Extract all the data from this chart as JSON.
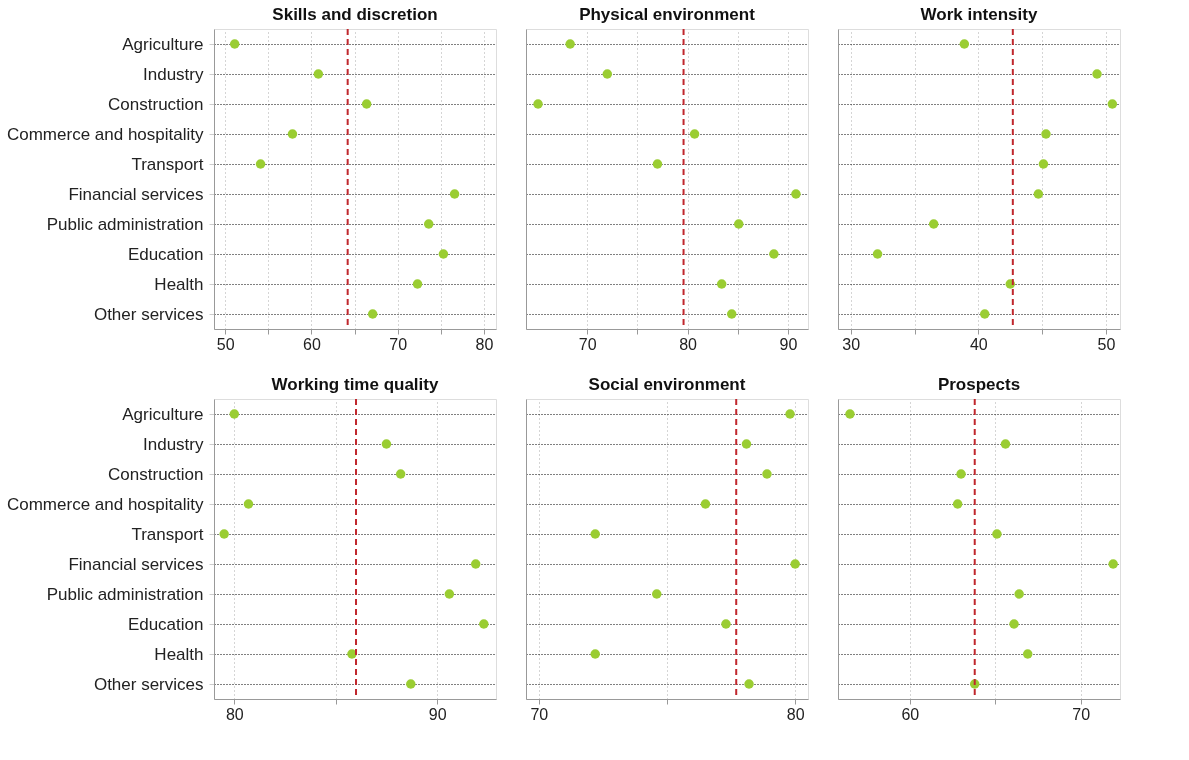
{
  "chart_data": [
    {
      "type": "scatter",
      "orientation": "horizontal",
      "title": "Skills and discretion",
      "categories": [
        "Agriculture",
        "Industry",
        "Construction",
        "Commerce and hospitality",
        "Transport",
        "Financial services",
        "Public administration",
        "Education",
        "Health",
        "Other services"
      ],
      "values": [
        51.1,
        60.8,
        66.4,
        57.8,
        54.1,
        76.6,
        73.6,
        75.3,
        72.3,
        67.1
      ],
      "color": "#9acd32",
      "marker": "circle",
      "xlim": [
        48.7,
        81.4
      ],
      "xticks": [
        50,
        {
          "value": 55,
          "label": null
        },
        60,
        {
          "value": 65,
          "label": null
        },
        70,
        {
          "value": 75,
          "label": null
        },
        80
      ],
      "ref_lines": [
        {
          "axis": "x",
          "value": 64.2,
          "color": "#c0272d",
          "line_style": "dashed"
        }
      ],
      "grid": true
    },
    {
      "type": "scatter",
      "orientation": "horizontal",
      "title": "Physical environment",
      "values": [
        68.3,
        72.0,
        65.1,
        80.7,
        77.0,
        90.8,
        85.1,
        88.6,
        83.4,
        84.4
      ],
      "color": "#9acd32",
      "marker": "circle",
      "xlim": [
        63.9,
        92.0
      ],
      "xticks": [
        70,
        {
          "value": 75,
          "label": null
        },
        80,
        {
          "value": 85,
          "label": null
        },
        90
      ],
      "ref_lines": [
        {
          "axis": "x",
          "value": 79.6,
          "color": "#c0272d",
          "line_style": "dashed"
        }
      ],
      "grid": true,
      "tick_labels": "x"
    },
    {
      "type": "scatter",
      "orientation": "horizontal",
      "title": "Work intensity",
      "values": [
        38.9,
        49.3,
        50.5,
        45.3,
        45.1,
        44.7,
        36.5,
        32.1,
        42.5,
        40.5
      ],
      "color": "#9acd32",
      "marker": "circle",
      "xlim": [
        29.0,
        51.1
      ],
      "xticks": [
        30,
        {
          "value": 35,
          "label": null
        },
        40,
        {
          "value": 45,
          "label": null
        },
        50
      ],
      "ref_lines": [
        {
          "axis": "x",
          "value": 42.7,
          "color": "#c0272d",
          "line_style": "dashed"
        }
      ],
      "grid": true,
      "tick_labels": "x"
    },
    {
      "type": "scatter",
      "orientation": "horizontal",
      "title": "Working time quality",
      "categories": [
        "Agriculture",
        "Industry",
        "Construction",
        "Commerce and hospitality",
        "Transport",
        "Financial services",
        "Public administration",
        "Education",
        "Health",
        "Other services"
      ],
      "values": [
        80.0,
        87.5,
        88.2,
        80.7,
        79.5,
        91.9,
        90.6,
        92.3,
        85.8,
        88.7
      ],
      "color": "#9acd32",
      "marker": "circle",
      "xlim": [
        79.0,
        92.9
      ],
      "xticks": [
        80,
        {
          "value": 85,
          "label": null
        },
        90
      ],
      "ref_lines": [
        {
          "axis": "x",
          "value": 86.0,
          "color": "#c0272d",
          "line_style": "dashed"
        }
      ],
      "grid": true
    },
    {
      "type": "scatter",
      "orientation": "horizontal",
      "title": "Social environment",
      "values": [
        79.8,
        78.1,
        78.9,
        76.5,
        72.2,
        80.0,
        74.6,
        77.3,
        72.2,
        78.2
      ],
      "color": "#9acd32",
      "marker": "circle",
      "xlim": [
        69.5,
        80.5
      ],
      "xticks": [
        70,
        {
          "value": 75,
          "label": null
        },
        80
      ],
      "ref_lines": [
        {
          "axis": "x",
          "value": 77.7,
          "color": "#c0272d",
          "line_style": "dashed"
        }
      ],
      "grid": true,
      "tick_labels": "x"
    },
    {
      "type": "scatter",
      "orientation": "horizontal",
      "title": "Prospects",
      "values": [
        56.5,
        65.6,
        63.0,
        62.8,
        65.1,
        71.9,
        66.4,
        66.1,
        66.9,
        63.8
      ],
      "color": "#9acd32",
      "marker": "circle",
      "xlim": [
        55.8,
        72.3
      ],
      "xticks": [
        60,
        {
          "value": 65,
          "label": null
        },
        70
      ],
      "ref_lines": [
        {
          "axis": "x",
          "value": 63.8,
          "color": "#c0272d",
          "line_style": "dashed"
        }
      ],
      "grid": true,
      "tick_labels": "x"
    }
  ]
}
